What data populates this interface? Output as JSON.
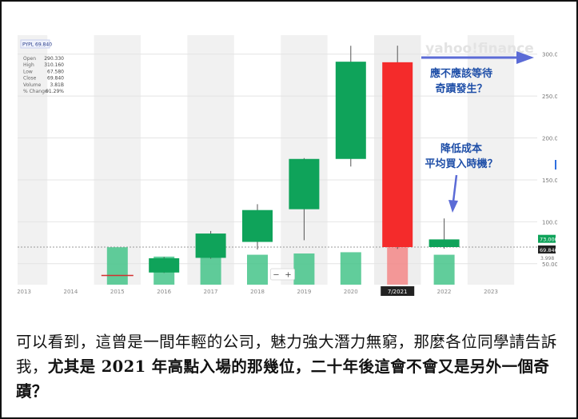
{
  "chart_data": {
    "type": "candlestick",
    "ticker_label": "PYPL 69.840",
    "watermark": "yahoo!finance",
    "categories": [
      "2013",
      "2014",
      "2015",
      "2016",
      "2017",
      "2018",
      "2019",
      "2020",
      "7/2021",
      "2022",
      "2023"
    ],
    "candles": [
      {
        "x": "2015",
        "open": 36.0,
        "close": 36.0,
        "high": 36.5,
        "low": 35.5,
        "color": "#d32f2f"
      },
      {
        "x": "2016",
        "open": 39.5,
        "close": 56.5,
        "high": 58.0,
        "low": 39.0,
        "color": "#0fa35a"
      },
      {
        "x": "2017",
        "open": 57.0,
        "close": 86.0,
        "high": 89.0,
        "low": 56.0,
        "color": "#0fa35a"
      },
      {
        "x": "2018",
        "open": 76.0,
        "close": 114.0,
        "high": 121.0,
        "low": 67.0,
        "color": "#0fa35a"
      },
      {
        "x": "2019",
        "open": 115.0,
        "close": 175.0,
        "high": 176.0,
        "low": 78.0,
        "color": "#0fa35a"
      },
      {
        "x": "2020",
        "open": 175.0,
        "close": 291.0,
        "high": 310.0,
        "low": 166.0,
        "color": "#0fa35a"
      },
      {
        "x": "7/2021",
        "open": 290.33,
        "close": 69.84,
        "high": 310.16,
        "low": 67.58,
        "color": "#f42b2b"
      },
      {
        "x": "2022",
        "open": 69.84,
        "close": 79.0,
        "high": 104.0,
        "low": 68.0,
        "color": "#0fa35a"
      }
    ],
    "volume": [
      {
        "x": "2015",
        "value": 0.6
      },
      {
        "x": "2016",
        "value": 0.45
      },
      {
        "x": "2017",
        "value": 0.52
      },
      {
        "x": "2018",
        "value": 0.48
      },
      {
        "x": "2019",
        "value": 0.5
      },
      {
        "x": "2020",
        "value": 0.52
      },
      {
        "x": "7/2021",
        "value": 0.6
      },
      {
        "x": "2022",
        "value": 0.48
      }
    ],
    "yticks": [
      "300.000",
      "250.000",
      "200.000",
      "150.000",
      "100.000",
      "50.000"
    ],
    "ytick_values": [
      300,
      250,
      200,
      150,
      100,
      50
    ],
    "ylim": [
      25,
      315
    ],
    "price_flags": [
      {
        "label": "73.000",
        "value": 73,
        "color": "#0fa35a"
      },
      {
        "label": "69.840",
        "value": 69.84,
        "color": "#222222"
      }
    ],
    "price_flag_sub": "3.998",
    "reference_line": 69.84,
    "stats": [
      {
        "label": "Open",
        "value": "290.330"
      },
      {
        "label": "High",
        "value": "310.160"
      },
      {
        "label": "Low",
        "value": "67.580"
      },
      {
        "label": "Close",
        "value": "69.840"
      },
      {
        "label": "Volume",
        "value": "3.81B"
      },
      {
        "label": "% Change",
        "value": "91.29%"
      }
    ],
    "zoom": {
      "minus": "−",
      "plus": "+"
    },
    "annotations": [
      {
        "lines": [
          "應不應該等待",
          "奇蹟發生？"
        ],
        "color": "#1f4fa8"
      },
      {
        "lines": [
          "降低成本",
          "平均買入時機？"
        ],
        "color": "#1f4fa8"
      }
    ],
    "highlight_label": "7/2021",
    "accent_arrow": "#5b6bd6"
  },
  "caption": {
    "part1": "可以看到，這曾是一間年輕的公司，魅力強大潛力無窮，那麼各位同學請告訴我，",
    "part2_bold": "尤其是 2021 年高點入場的那幾位，二十年後這會不會又是另外一個奇蹟？"
  }
}
